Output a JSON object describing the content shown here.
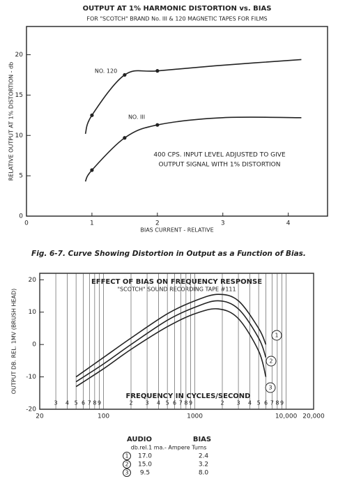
{
  "chart_data": [
    {
      "type": "line",
      "title": "OUTPUT AT 1% HARMONIC DISTORTION vs. BIAS",
      "subtitle": "FOR \"SCOTCH\" BRAND No. III & 120 MAGNETIC TAPES FOR FILMS",
      "x_label": "BIAS CURRENT - RELATIVE",
      "y_label": "RELATIVE OUTPUT AT 1% DISTORTION - db",
      "annotation": [
        "400 CPS. INPUT LEVEL ADJUSTED TO GIVE",
        "OUTPUT SIGNAL WITH 1% DISTORTION"
      ],
      "caption": "Fig. 6-7. Curve Showing Distortion in Output as a Function of Bias.",
      "xlim": [
        0,
        4.6
      ],
      "xticks": [
        0,
        1,
        2,
        3,
        4
      ],
      "ylim": [
        0,
        23.5
      ],
      "yticks": [
        0,
        5,
        10,
        15,
        20
      ],
      "grid": false,
      "x": [
        0.9,
        1.0,
        1.5,
        2.0,
        3.0,
        4.2
      ],
      "series": [
        {
          "name": "NO. 120",
          "color": "#222222",
          "values": [
            10.2,
            12.5,
            17.5,
            18.0,
            18.7,
            19.4
          ]
        },
        {
          "name": "NO. III",
          "color": "#222222",
          "values": [
            4.3,
            5.7,
            9.7,
            11.3,
            12.2,
            12.2
          ]
        }
      ]
    },
    {
      "type": "line",
      "title": "EFFECT OF BIAS ON FREQUENCY RESPONSE",
      "subtitle": "\"SCOTCH\" SOUND RECORDING TAPE #111",
      "x_label": "FREQUENCY IN CYCLES/SECOND",
      "y_label": "OUTPUT DB. REL. 1MV (BRUSH HEAD)",
      "xscale": "log",
      "xlim": [
        20,
        20000
      ],
      "xticks": [
        20,
        {
          "value": 30,
          "label": "3"
        },
        {
          "value": 40,
          "label": "4"
        },
        {
          "value": 50,
          "label": "5"
        },
        {
          "value": 60,
          "label": "6"
        },
        {
          "value": 70,
          "label": "7"
        },
        {
          "value": 80,
          "label": "8"
        },
        {
          "value": 90,
          "label": "9"
        },
        100,
        {
          "value": 200,
          "label": "2"
        },
        {
          "value": 300,
          "label": "3"
        },
        {
          "value": 400,
          "label": "4"
        },
        {
          "value": 500,
          "label": "5"
        },
        {
          "value": 600,
          "label": "6"
        },
        {
          "value": 700,
          "label": "7"
        },
        {
          "value": 800,
          "label": "8"
        },
        {
          "value": 900,
          "label": "9"
        },
        1000,
        {
          "value": 2000,
          "label": "2"
        },
        {
          "value": 3000,
          "label": "3"
        },
        {
          "value": 4000,
          "label": "4"
        },
        {
          "value": 5000,
          "label": "5"
        },
        {
          "value": 6000,
          "label": "6"
        },
        {
          "value": 7000,
          "label": "7"
        },
        {
          "value": 8000,
          "label": "8"
        },
        {
          "value": 9000,
          "label": "9"
        },
        {
          "value": 10000,
          "label": "10,000"
        },
        {
          "value": 20000,
          "label": "20,000"
        }
      ],
      "ylim": [
        -20,
        22
      ],
      "yticks": [
        -20,
        -10,
        0,
        10,
        20
      ],
      "grid": true,
      "x": [
        50,
        100,
        200,
        500,
        1000,
        1800,
        3000,
        5000,
        6000
      ],
      "series": [
        {
          "name": "1",
          "color": "#222222",
          "values": [
            -10,
            -4,
            2,
            9.5,
            13.5,
            15.5,
            13.5,
            5,
            0
          ]
        },
        {
          "name": "2",
          "color": "#222222",
          "values": [
            -11.5,
            -6,
            0,
            7.5,
            11.5,
            13.5,
            11,
            2,
            -4
          ]
        },
        {
          "name": "3",
          "color": "#222222",
          "values": [
            -13,
            -7.5,
            -1.5,
            5.5,
            9.5,
            11,
            8,
            -2,
            -10
          ]
        }
      ],
      "table": {
        "headers": [
          "AUDIO",
          "BIAS"
        ],
        "units": "db.rel.1 ma.- Ampere Turns",
        "rows": [
          [
            "1",
            "17.0",
            "2.4"
          ],
          [
            "2",
            "15.0",
            "3.2"
          ],
          [
            "3",
            "9.5",
            "8.0"
          ]
        ]
      }
    }
  ]
}
